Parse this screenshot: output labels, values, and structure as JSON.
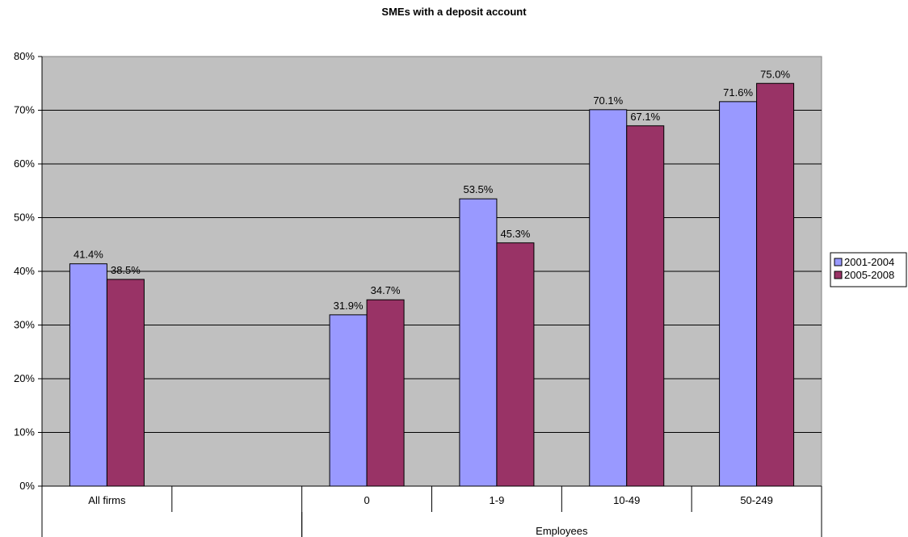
{
  "chart_data": {
    "type": "bar",
    "title": "SMEs with a deposit account",
    "categories": [
      "All firms",
      "",
      "0",
      "1-9",
      "10-49",
      "50-249"
    ],
    "group_labels": [
      {
        "label": "",
        "span": [
          0,
          1
        ]
      },
      {
        "label": "Employees",
        "span": [
          2,
          5
        ]
      }
    ],
    "series": [
      {
        "name": "2001-2004",
        "color": "#9999ff",
        "values": [
          41.4,
          null,
          31.9,
          53.5,
          70.1,
          71.6
        ]
      },
      {
        "name": "2005-2008",
        "color": "#993366",
        "values": [
          38.5,
          null,
          34.7,
          45.3,
          67.1,
          75.0
        ]
      }
    ],
    "data_labels": {
      "2001-2004": [
        "41.4%",
        "",
        "31.9%",
        "53.5%",
        "70.1%",
        "71.6%"
      ],
      "2005-2008": [
        "38.5%",
        "",
        "34.7%",
        "45.3%",
        "67.1%",
        "75.0%"
      ]
    },
    "yticks": [
      "0%",
      "10%",
      "20%",
      "30%",
      "40%",
      "50%",
      "60%",
      "70%",
      "80%"
    ],
    "ylim": [
      0,
      80
    ],
    "grid": true,
    "legend_position": "right",
    "plot_background": "#c0c0c0"
  }
}
